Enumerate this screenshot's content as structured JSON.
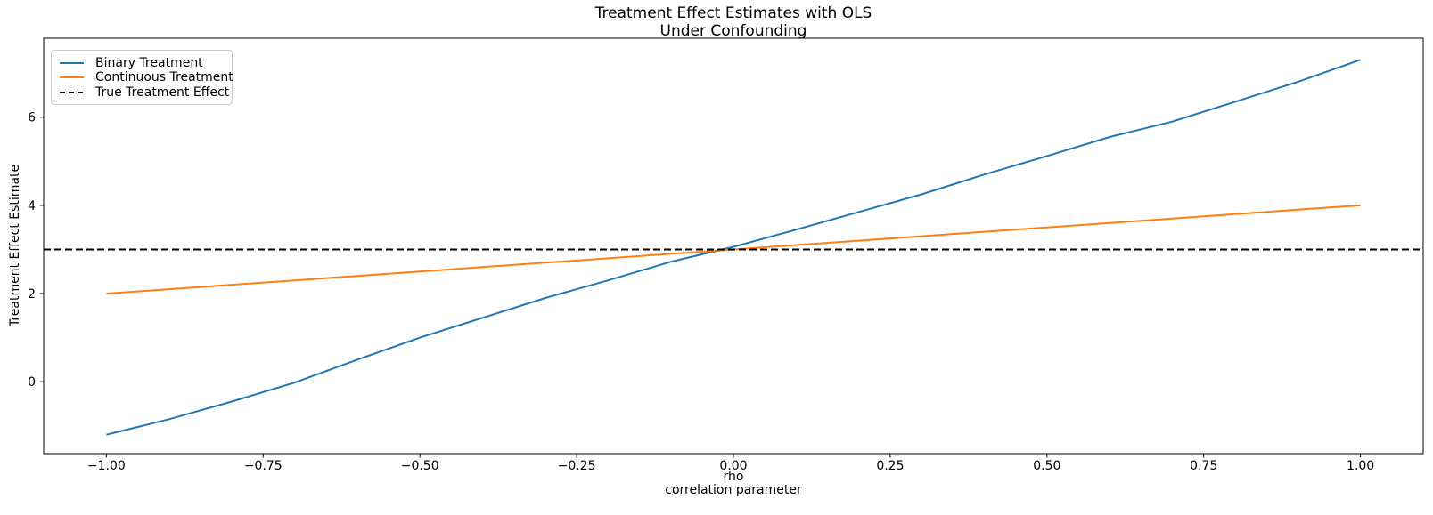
{
  "chart_data": {
    "type": "line",
    "title": "Treatment Effect Estimates with OLS\nUnder Confounding",
    "xlabel": "rho\ncorrelation parameter",
    "ylabel": "Treatment Effect Estimate",
    "xlim": [
      -1.1,
      1.1
    ],
    "ylim": [
      -1.63,
      7.79
    ],
    "grid": false,
    "legend_position": "upper left",
    "xticks": {
      "values": [
        -1.0,
        -0.75,
        -0.5,
        -0.25,
        0.0,
        0.25,
        0.5,
        0.75,
        1.0
      ],
      "labels": [
        "−1.00",
        "−0.75",
        "−0.50",
        "−0.25",
        "0.00",
        "0.25",
        "0.50",
        "0.75",
        "1.00"
      ]
    },
    "yticks": {
      "values": [
        0,
        2,
        4,
        6
      ],
      "labels": [
        "0",
        "2",
        "4",
        "6"
      ]
    },
    "x": [
      -1.0,
      -0.9,
      -0.8,
      -0.7,
      -0.6,
      -0.5,
      -0.4,
      -0.3,
      -0.2,
      -0.1,
      0.0,
      0.1,
      0.2,
      0.3,
      0.4,
      0.5,
      0.6,
      0.7,
      0.8,
      0.9,
      1.0
    ],
    "series": [
      {
        "name": "Binary Treatment",
        "color": "#1f77b4",
        "style": "solid",
        "values": [
          -1.2,
          -0.85,
          -0.45,
          -0.02,
          0.5,
          1.0,
          1.45,
          1.9,
          2.3,
          2.72,
          3.06,
          3.45,
          3.85,
          4.25,
          4.7,
          5.12,
          5.55,
          5.9,
          6.35,
          6.8,
          7.3
        ]
      },
      {
        "name": "Continuous Treatment",
        "color": "#ff7f0e",
        "style": "solid",
        "values": [
          2.0,
          2.1,
          2.2,
          2.3,
          2.4,
          2.5,
          2.6,
          2.7,
          2.8,
          2.9,
          3.0,
          3.1,
          3.2,
          3.3,
          3.4,
          3.5,
          3.6,
          3.7,
          3.8,
          3.9,
          4.0
        ]
      },
      {
        "name": "True Treatment Effect",
        "color": "#000000",
        "style": "dashed",
        "span_full_width": true,
        "constant": 3.0
      }
    ]
  }
}
